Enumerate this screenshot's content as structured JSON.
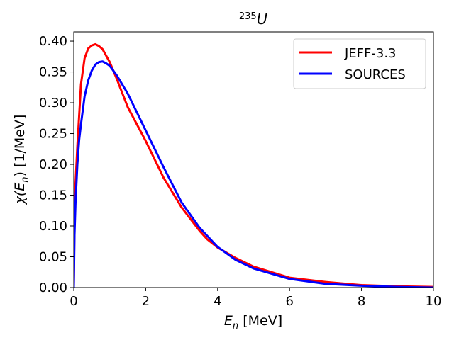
{
  "chart_data": {
    "type": "line",
    "title": {
      "sup": "235",
      "main": "U"
    },
    "xlabel": {
      "sym": "E",
      "sub": "n",
      "unit": " [MeV]"
    },
    "ylabel": {
      "pre": "χ(",
      "sym": "E",
      "sub": "n",
      "post": ") [1/MeV]"
    },
    "xlim": [
      0,
      10
    ],
    "ylim": [
      0,
      0.415
    ],
    "xticks": [
      0,
      2,
      4,
      6,
      8,
      10
    ],
    "xtick_labels": [
      "0",
      "2",
      "4",
      "6",
      "8",
      "10"
    ],
    "yticks": [
      0.0,
      0.05,
      0.1,
      0.15,
      0.2,
      0.25,
      0.3,
      0.35,
      0.4
    ],
    "ytick_labels": [
      "0.00",
      "0.05",
      "0.10",
      "0.15",
      "0.20",
      "0.25",
      "0.30",
      "0.35",
      "0.40"
    ],
    "grid": false,
    "legend_position": "top-right",
    "series": [
      {
        "name": "JEFF-3.3",
        "color": "#ff0000",
        "x": [
          0,
          0.02,
          0.05,
          0.1,
          0.15,
          0.2,
          0.3,
          0.4,
          0.5,
          0.6,
          0.7,
          0.8,
          1.0,
          1.2,
          1.5,
          2.0,
          2.5,
          3.0,
          3.5,
          3.7,
          4.0,
          4.5,
          5.0,
          6.0,
          7.0,
          8.0,
          9.0,
          10.0
        ],
        "y": [
          0.0,
          0.11,
          0.17,
          0.23,
          0.28,
          0.33,
          0.372,
          0.388,
          0.393,
          0.395,
          0.392,
          0.387,
          0.366,
          0.338,
          0.293,
          0.238,
          0.178,
          0.13,
          0.092,
          0.079,
          0.065,
          0.048,
          0.034,
          0.016,
          0.009,
          0.004,
          0.002,
          0.001
        ]
      },
      {
        "name": "SOURCES",
        "color": "#0000ff",
        "x": [
          0,
          0.02,
          0.05,
          0.1,
          0.15,
          0.2,
          0.3,
          0.4,
          0.5,
          0.6,
          0.7,
          0.8,
          0.9,
          1.0,
          1.2,
          1.5,
          2.0,
          2.5,
          3.0,
          3.5,
          4.0,
          4.5,
          5.0,
          6.0,
          7.0,
          8.0,
          9.0,
          10.0
        ],
        "y": [
          0.0,
          0.085,
          0.14,
          0.2,
          0.24,
          0.265,
          0.31,
          0.336,
          0.352,
          0.362,
          0.366,
          0.367,
          0.364,
          0.36,
          0.344,
          0.315,
          0.255,
          0.195,
          0.138,
          0.097,
          0.066,
          0.045,
          0.031,
          0.014,
          0.006,
          0.003,
          0.001,
          0.0
        ]
      }
    ]
  }
}
